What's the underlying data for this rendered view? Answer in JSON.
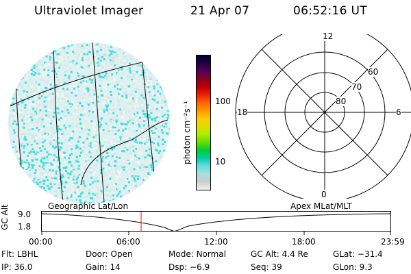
{
  "header": {
    "instrument": "Ultraviolet Imager",
    "date": "21 Apr 07",
    "time": "06:52:16 UT"
  },
  "colorbar": {
    "unit_label": "photon cm⁻²s⁻¹",
    "ticks": [
      "100",
      "10"
    ],
    "colors": [
      "#000033",
      "#220044",
      "#550055",
      "#880022",
      "#bb0000",
      "#ee2200",
      "#ff6600",
      "#ff9900",
      "#ffcc00",
      "#dddd00",
      "#aaee00",
      "#66dd00",
      "#00cc33",
      "#00ccaa",
      "#66dddd",
      "#aadddd",
      "#cccccc",
      "#f2f2f2"
    ]
  },
  "polar_plot": {
    "clock_labels": [
      "12",
      "18",
      "6",
      "0"
    ],
    "lat_labels": [
      "60",
      "70",
      "80"
    ]
  },
  "timeline": {
    "left_label": "Geographic Lat/Lon",
    "right_label": "Apex  MLat/MLT",
    "axis_title": "GC Alt",
    "y_ticks": [
      "9.0",
      "1.8"
    ],
    "x_ticks": [
      "00:00",
      "06:00",
      "12:00",
      "18:00",
      "23:59"
    ],
    "marker_color": "#ff0000"
  },
  "status": {
    "row1": {
      "flt_label": "Flt:",
      "flt_value": "LBHL",
      "door_label": "Door:",
      "door_value": "Open",
      "mode_label": "Mode:",
      "mode_value": "Normal",
      "gcalt_label": "GC Alt:",
      "gcalt_value": "4.4 Re",
      "glat_label": "GLat:",
      "glat_value": "−31.4"
    },
    "row2": {
      "ip_label": "IP:",
      "ip_value": "36.0",
      "gain_label": "Gain:",
      "gain_value": "14",
      "dsp_label": "Dsp:",
      "dsp_value": "−6.9",
      "seq_label": "Seq:",
      "seq_value": "39",
      "glon_label": "GLon:",
      "glon_value": "9.3"
    }
  },
  "colors": {
    "aurora_cyan": "#44dddd",
    "aurora_light": "#cfe9e9",
    "grid": "#000000"
  }
}
